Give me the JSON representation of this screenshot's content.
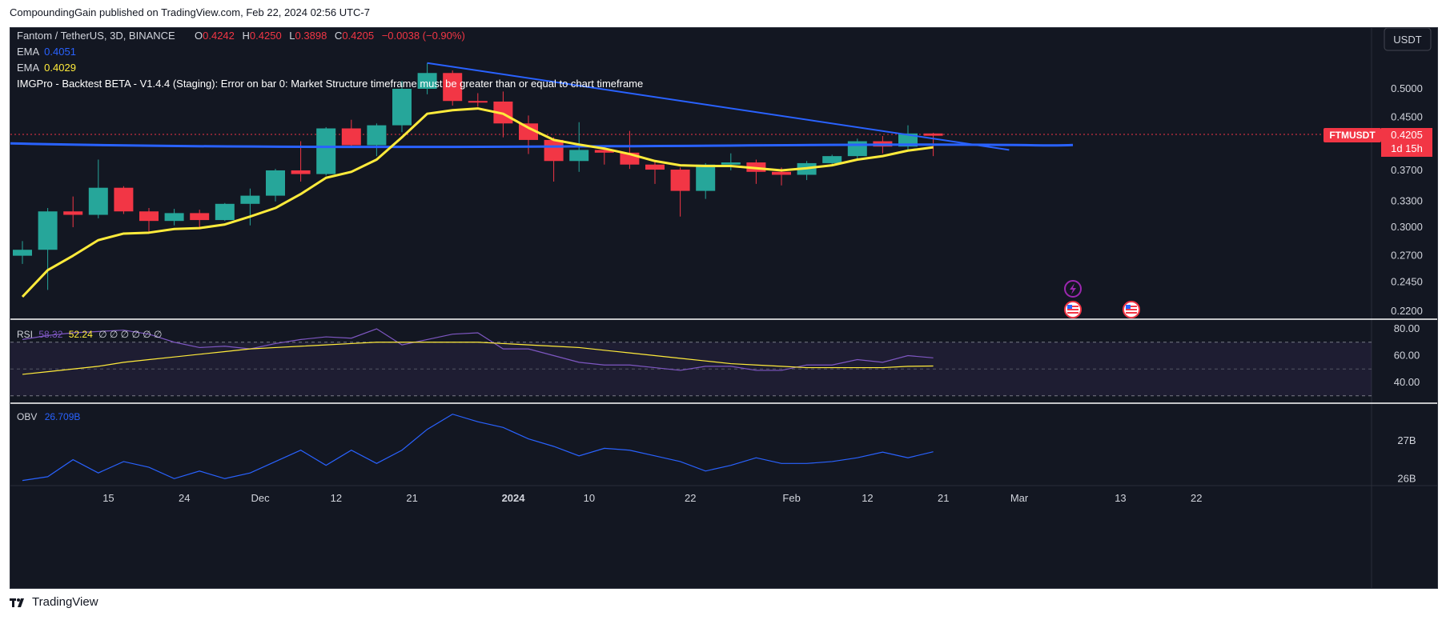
{
  "header": {
    "publisher_line": "CompoundingGain published on TradingView.com, Feb 22, 2024 02:56 UTC-7"
  },
  "footer": {
    "brand": "TradingView",
    "logo_icon": "tradingview-logo-icon"
  },
  "colors": {
    "background": "#131722",
    "up": "#26a69a",
    "down": "#f23645",
    "ema_fast": "#2962ff",
    "ema_slow": "#ffeb3b",
    "rsi": "#7e57c2",
    "obv": "#2962ff"
  },
  "legend": {
    "symbol": "Fantom / TetherUS, 3D, BINANCE",
    "o_label": "O",
    "o_value": "0.4242",
    "h_label": "H",
    "h_value": "0.4250",
    "l_label": "L",
    "l_value": "0.3898",
    "c_label": "C",
    "c_value": "0.4205",
    "change": "−0.0038 (−0.90%)",
    "ema1_label": "EMA",
    "ema1_value": "0.4051",
    "ema2_label": "EMA",
    "ema2_value": "0.4029",
    "indicator_error": "IMGPro - Backtest BETA - V1.4.4 (Staging): Error on bar 0: Market Structure timeframe must be greater than or equal to chart timeframe"
  },
  "currency_button": "USDT",
  "price_tag": {
    "symbol": "FTMUSDT",
    "value": "0.4205",
    "countdown": "1d 15h"
  },
  "rsi_legend": {
    "label": "RSI",
    "value1": "58.32",
    "value2": "52.24",
    "empties": "∅ ∅ ∅ ∅ ∅ ∅"
  },
  "obv_legend": {
    "label": "OBV",
    "value": "26.709B"
  },
  "chart_data": {
    "type": "candlestick",
    "symbol": "FTMUSDT",
    "timeframe": "3D",
    "exchange": "BINANCE",
    "price_axis_ticks": [
      "0.5000",
      "0.4500",
      "0.4205",
      "0.3700",
      "0.3300",
      "0.3000",
      "0.2700",
      "0.2450",
      "0.2200"
    ],
    "x_axis_ticks": [
      "15",
      "24",
      "Dec",
      "12",
      "21",
      "2024",
      "10",
      "22",
      "Feb",
      "12",
      "21",
      "Mar",
      "13",
      "22"
    ],
    "log_scale": true,
    "candles": [
      {
        "o": 0.27,
        "h": 0.285,
        "l": 0.262,
        "c": 0.276
      },
      {
        "o": 0.276,
        "h": 0.322,
        "l": 0.238,
        "c": 0.318
      },
      {
        "o": 0.318,
        "h": 0.336,
        "l": 0.3,
        "c": 0.314
      },
      {
        "o": 0.314,
        "h": 0.385,
        "l": 0.31,
        "c": 0.347
      },
      {
        "o": 0.347,
        "h": 0.349,
        "l": 0.315,
        "c": 0.318
      },
      {
        "o": 0.318,
        "h": 0.322,
        "l": 0.295,
        "c": 0.307
      },
      {
        "o": 0.307,
        "h": 0.321,
        "l": 0.302,
        "c": 0.316
      },
      {
        "o": 0.316,
        "h": 0.32,
        "l": 0.3,
        "c": 0.308
      },
      {
        "o": 0.308,
        "h": 0.328,
        "l": 0.307,
        "c": 0.327
      },
      {
        "o": 0.327,
        "h": 0.346,
        "l": 0.302,
        "c": 0.337
      },
      {
        "o": 0.337,
        "h": 0.372,
        "l": 0.33,
        "c": 0.37
      },
      {
        "o": 0.37,
        "h": 0.412,
        "l": 0.355,
        "c": 0.365
      },
      {
        "o": 0.365,
        "h": 0.434,
        "l": 0.363,
        "c": 0.432
      },
      {
        "o": 0.432,
        "h": 0.446,
        "l": 0.404,
        "c": 0.406
      },
      {
        "o": 0.406,
        "h": 0.44,
        "l": 0.39,
        "c": 0.437
      },
      {
        "o": 0.437,
        "h": 0.515,
        "l": 0.426,
        "c": 0.5
      },
      {
        "o": 0.5,
        "h": 0.55,
        "l": 0.49,
        "c": 0.53
      },
      {
        "o": 0.53,
        "h": 0.535,
        "l": 0.47,
        "c": 0.478
      },
      {
        "o": 0.478,
        "h": 0.492,
        "l": 0.468,
        "c": 0.477
      },
      {
        "o": 0.477,
        "h": 0.495,
        "l": 0.418,
        "c": 0.44
      },
      {
        "o": 0.44,
        "h": 0.453,
        "l": 0.393,
        "c": 0.414
      },
      {
        "o": 0.414,
        "h": 0.418,
        "l": 0.355,
        "c": 0.383
      },
      {
        "o": 0.383,
        "h": 0.442,
        "l": 0.368,
        "c": 0.399
      },
      {
        "o": 0.399,
        "h": 0.405,
        "l": 0.378,
        "c": 0.395
      },
      {
        "o": 0.395,
        "h": 0.428,
        "l": 0.372,
        "c": 0.378
      },
      {
        "o": 0.378,
        "h": 0.382,
        "l": 0.352,
        "c": 0.371
      },
      {
        "o": 0.371,
        "h": 0.374,
        "l": 0.312,
        "c": 0.343
      },
      {
        "o": 0.343,
        "h": 0.38,
        "l": 0.333,
        "c": 0.378
      },
      {
        "o": 0.378,
        "h": 0.394,
        "l": 0.37,
        "c": 0.381
      },
      {
        "o": 0.381,
        "h": 0.385,
        "l": 0.352,
        "c": 0.368
      },
      {
        "o": 0.368,
        "h": 0.374,
        "l": 0.35,
        "c": 0.364
      },
      {
        "o": 0.364,
        "h": 0.383,
        "l": 0.357,
        "c": 0.38
      },
      {
        "o": 0.38,
        "h": 0.392,
        "l": 0.376,
        "c": 0.39
      },
      {
        "o": 0.39,
        "h": 0.416,
        "l": 0.385,
        "c": 0.412
      },
      {
        "o": 0.412,
        "h": 0.42,
        "l": 0.394,
        "c": 0.404
      },
      {
        "o": 0.404,
        "h": 0.437,
        "l": 0.397,
        "c": 0.424
      },
      {
        "o": 0.424,
        "h": 0.425,
        "l": 0.39,
        "c": 0.4205
      }
    ],
    "ema_yellow": [
      0.232,
      0.256,
      0.27,
      0.286,
      0.293,
      0.294,
      0.298,
      0.299,
      0.303,
      0.312,
      0.322,
      0.339,
      0.36,
      0.368,
      0.385,
      0.418,
      0.456,
      0.462,
      0.465,
      0.456,
      0.433,
      0.414,
      0.407,
      0.401,
      0.393,
      0.383,
      0.377,
      0.376,
      0.376,
      0.373,
      0.37,
      0.373,
      0.377,
      0.385,
      0.39,
      0.398,
      0.4029
    ],
    "ema_blue_level": 0.4051,
    "trendline": {
      "from_candle": 16,
      "from_price": 0.55,
      "to_candle": 39,
      "to_price": 0.399
    },
    "rsi": {
      "axis_ticks": [
        "80.00",
        "60.00",
        "40.00"
      ],
      "upper": 70,
      "lower": 30,
      "values": [
        72,
        75,
        77,
        78,
        79,
        76,
        70,
        66,
        67,
        65,
        69,
        72,
        74,
        73,
        80,
        68,
        72,
        76,
        77,
        65,
        65,
        60,
        55,
        53,
        53,
        51,
        49,
        52,
        52,
        49,
        49,
        53,
        53,
        57,
        55,
        60,
        58.32
      ],
      "ma": [
        46,
        48,
        50,
        52,
        55,
        57,
        59,
        61,
        63,
        65,
        66,
        67,
        68,
        69,
        70,
        70,
        70,
        70,
        70,
        69,
        68,
        67,
        66,
        64,
        62,
        60,
        58,
        56,
        54,
        53,
        52,
        51,
        51,
        51,
        51,
        52,
        52.24
      ]
    },
    "obv": {
      "axis_ticks": [
        "27B",
        "26B"
      ],
      "values": [
        25.95,
        26.05,
        26.5,
        26.15,
        26.45,
        26.3,
        26.0,
        26.2,
        26.0,
        26.15,
        26.45,
        26.75,
        26.35,
        26.75,
        26.4,
        26.75,
        27.3,
        27.7,
        27.5,
        27.35,
        27.05,
        26.85,
        26.6,
        26.8,
        26.75,
        26.6,
        26.45,
        26.2,
        26.35,
        26.55,
        26.4,
        26.4,
        26.45,
        26.55,
        26.7,
        26.55,
        26.709
      ]
    }
  }
}
